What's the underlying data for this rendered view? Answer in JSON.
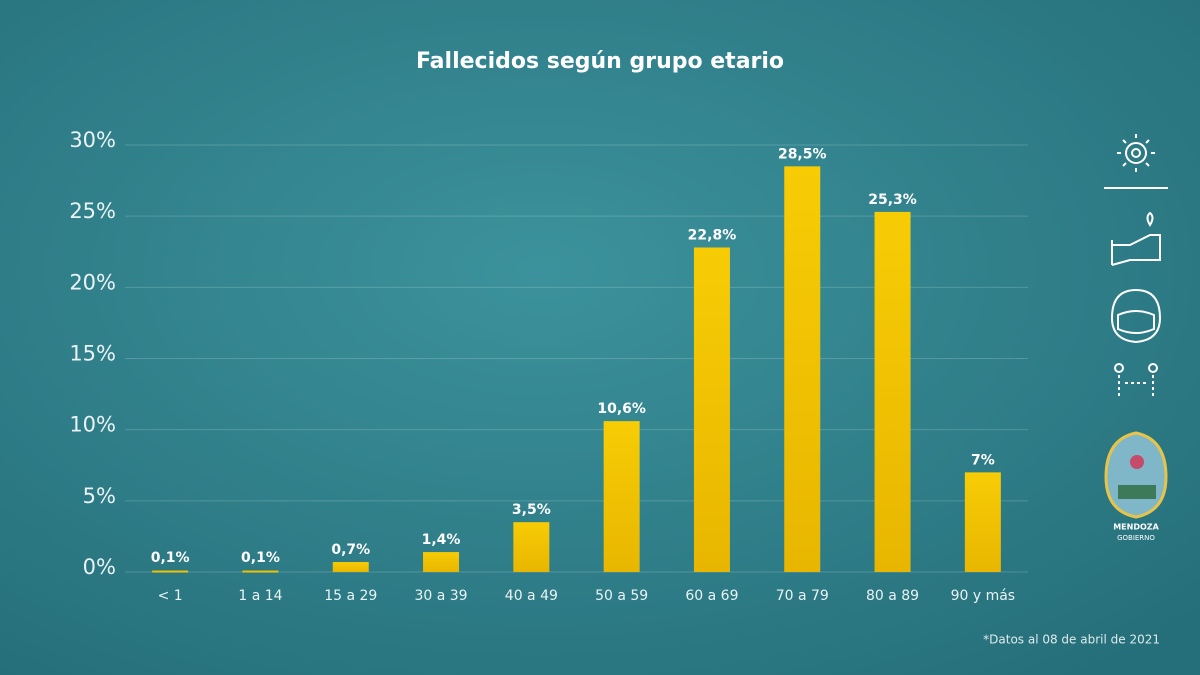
{
  "chart_data": {
    "type": "bar",
    "title": "Fallecidos según grupo etario",
    "categories": [
      "< 1",
      "1 a 14",
      "15 a 29",
      "30 a 39",
      "40 a 49",
      "50 a 59",
      "60 a 69",
      "70 a 79",
      "80 a 89",
      "90 y más"
    ],
    "values": [
      0.1,
      0.1,
      0.7,
      1.4,
      3.5,
      10.6,
      22.8,
      28.5,
      25.3,
      7
    ],
    "value_labels": [
      "0,1%",
      "0,1%",
      "0,7%",
      "1,4%",
      "3,5%",
      "10,6%",
      "22,8%",
      "28,5%",
      "25,3%",
      "7%"
    ],
    "color": "#f3c400",
    "ylim": [
      0,
      30
    ],
    "yticks": [
      {
        "value": 0,
        "label": "0%"
      },
      {
        "value": 5,
        "label": "5%"
      },
      {
        "value": 10,
        "label": "10%"
      },
      {
        "value": 15,
        "label": "15%"
      },
      {
        "value": 20,
        "label": "20%"
      },
      {
        "value": 25,
        "label": "25%"
      },
      {
        "value": 30,
        "label": "30%"
      }
    ],
    "grid": true,
    "note": "*Datos al 08 de abril de 2021"
  },
  "logo": {
    "name": "MENDOZA",
    "subtitle": "GOBIERNO"
  }
}
